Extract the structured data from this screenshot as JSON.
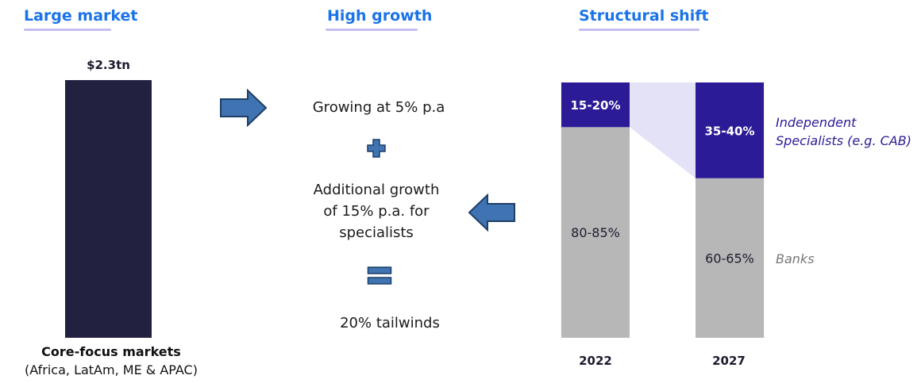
{
  "headings": {
    "large_market": "Large market",
    "high_growth": "High growth",
    "structural_shift": "Structural shift"
  },
  "market": {
    "value_label": "$2.3tn",
    "caption_line1": "Core-focus markets",
    "caption_line2": "(Africa, LatAm, ME & APAC)",
    "bar_color": "#22213f"
  },
  "growth": {
    "line1": "Growing at 5% p.a",
    "line2a": "Additional growth",
    "line2b": "of 15% p.a. for",
    "line2c": "specialists",
    "result": "20% tailwinds",
    "plus_symbol": "plus-icon",
    "equals_symbol": "equals-icon"
  },
  "chart_data": {
    "type": "bar",
    "stacked": true,
    "normalized": true,
    "categories": [
      "2022",
      "2027"
    ],
    "series": [
      {
        "name": "Banks",
        "value_labels": [
          "80-85%",
          "60-65%"
        ],
        "values": [
          82.5,
          62.5
        ],
        "color": "#b7b7b7"
      },
      {
        "name": "Independent Specialists (e.g. CAB)",
        "value_labels": [
          "15-20%",
          "35-40%"
        ],
        "values": [
          17.5,
          37.5
        ],
        "color": "#2b1b96"
      }
    ],
    "legend": {
      "specialists_line1": "Independent",
      "specialists_line2": "Specialists (e.g. CAB)",
      "banks": "Banks"
    },
    "connector_color": "#e4e2f6"
  },
  "colors": {
    "heading": "#1a73e8",
    "underline": "#c6bcf0",
    "arrow_fill": "#3f73b2",
    "arrow_stroke": "#1f3f66",
    "specialists_text": "#2b1b96",
    "banks_text": "#777777"
  }
}
